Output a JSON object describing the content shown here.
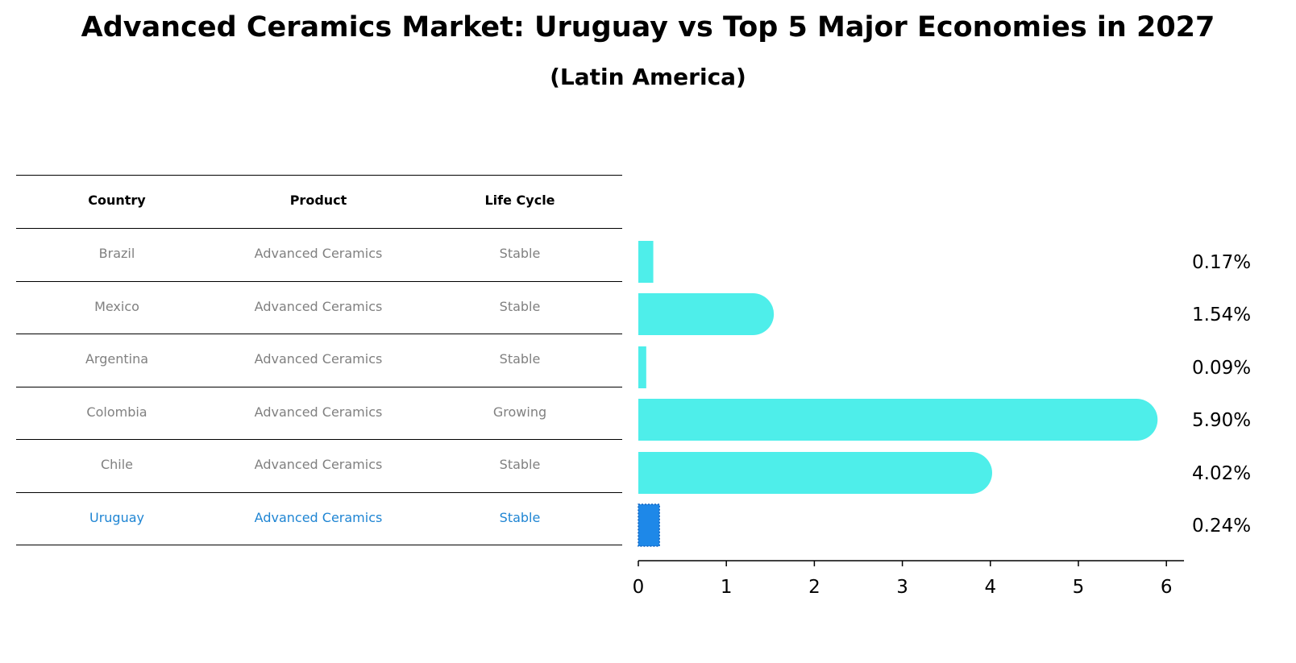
{
  "title": "Advanced Ceramics Market: Uruguay vs Top 5 Major Economies in 2027",
  "subtitle": "(Latin America)",
  "table": {
    "headers": [
      "Country",
      "Product",
      "Life Cycle"
    ],
    "rows": [
      {
        "country": "Brazil",
        "product": "Advanced Ceramics",
        "life_cycle": "Stable"
      },
      {
        "country": "Mexico",
        "product": "Advanced Ceramics",
        "life_cycle": "Stable"
      },
      {
        "country": "Argentina",
        "product": "Advanced Ceramics",
        "life_cycle": "Stable"
      },
      {
        "country": "Colombia",
        "product": "Advanced Ceramics",
        "life_cycle": "Growing"
      },
      {
        "country": "Chile",
        "product": "Advanced Ceramics",
        "life_cycle": "Stable"
      },
      {
        "country": "Uruguay",
        "product": "Advanced Ceramics",
        "life_cycle": "Stable"
      }
    ]
  },
  "colors": {
    "bar": "#4eeeea",
    "highlight_bar": "#1e88e8",
    "highlight_text": "#1f85d3",
    "text_muted": "#808080"
  },
  "chart_data": {
    "type": "bar",
    "orientation": "horizontal",
    "categories": [
      "Brazil",
      "Mexico",
      "Argentina",
      "Colombia",
      "Chile",
      "Uruguay"
    ],
    "values": [
      0.17,
      1.54,
      0.09,
      5.9,
      4.02,
      0.24
    ],
    "value_labels": [
      "0.17%",
      "1.54%",
      "0.09%",
      "5.90%",
      "4.02%",
      "0.24%"
    ],
    "highlight": "Uruguay",
    "xlim": [
      0,
      6.2
    ],
    "xticks": [
      0,
      1,
      2,
      3,
      4,
      5,
      6
    ],
    "grid": false
  }
}
